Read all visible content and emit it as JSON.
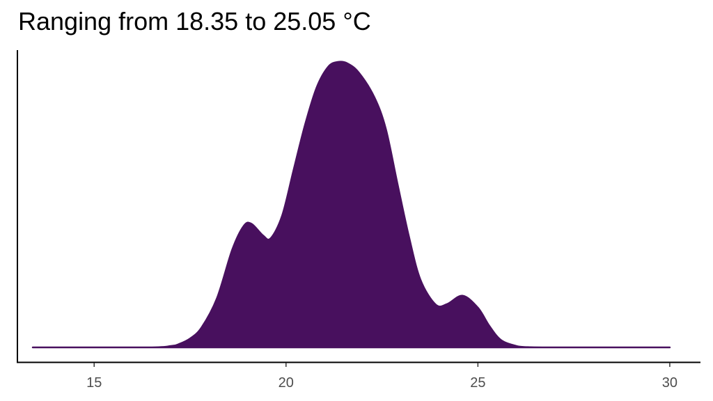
{
  "chart_data": {
    "type": "area",
    "title": "Ranging from 18.35 to 25.05 °C",
    "xlabel": "",
    "ylabel": "",
    "xlim": [
      13.0,
      30.8
    ],
    "ylim": [
      0,
      1
    ],
    "x_ticks": [
      15,
      20,
      25,
      30
    ],
    "x_tick_labels": [
      "15",
      "20",
      "25",
      "30"
    ],
    "y_ticks_shown": false,
    "grid": false,
    "legend": "none",
    "series": [
      {
        "color": "#48105e",
        "points": [
          [
            13.4,
            0.0
          ],
          [
            16.4,
            0.0
          ],
          [
            17.0,
            0.005
          ],
          [
            17.2,
            0.011
          ],
          [
            17.5,
            0.031
          ],
          [
            17.8,
            0.07
          ],
          [
            18.2,
            0.172
          ],
          [
            18.6,
            0.343
          ],
          [
            18.9,
            0.426
          ],
          [
            19.1,
            0.433
          ],
          [
            19.4,
            0.392
          ],
          [
            19.6,
            0.382
          ],
          [
            19.9,
            0.462
          ],
          [
            20.2,
            0.623
          ],
          [
            20.5,
            0.782
          ],
          [
            20.8,
            0.911
          ],
          [
            21.1,
            0.983
          ],
          [
            21.35,
            1.0
          ],
          [
            21.6,
            0.995
          ],
          [
            21.9,
            0.962
          ],
          [
            22.3,
            0.877
          ],
          [
            22.6,
            0.766
          ],
          [
            22.9,
            0.576
          ],
          [
            23.2,
            0.39
          ],
          [
            23.5,
            0.238
          ],
          [
            23.9,
            0.15
          ],
          [
            24.2,
            0.152
          ],
          [
            24.6,
            0.181
          ],
          [
            25.0,
            0.139
          ],
          [
            25.3,
            0.075
          ],
          [
            25.6,
            0.026
          ],
          [
            26.0,
            0.005
          ],
          [
            26.3,
            0.001
          ],
          [
            27.0,
            0.0
          ],
          [
            30.0,
            0.0
          ]
        ]
      }
    ]
  }
}
